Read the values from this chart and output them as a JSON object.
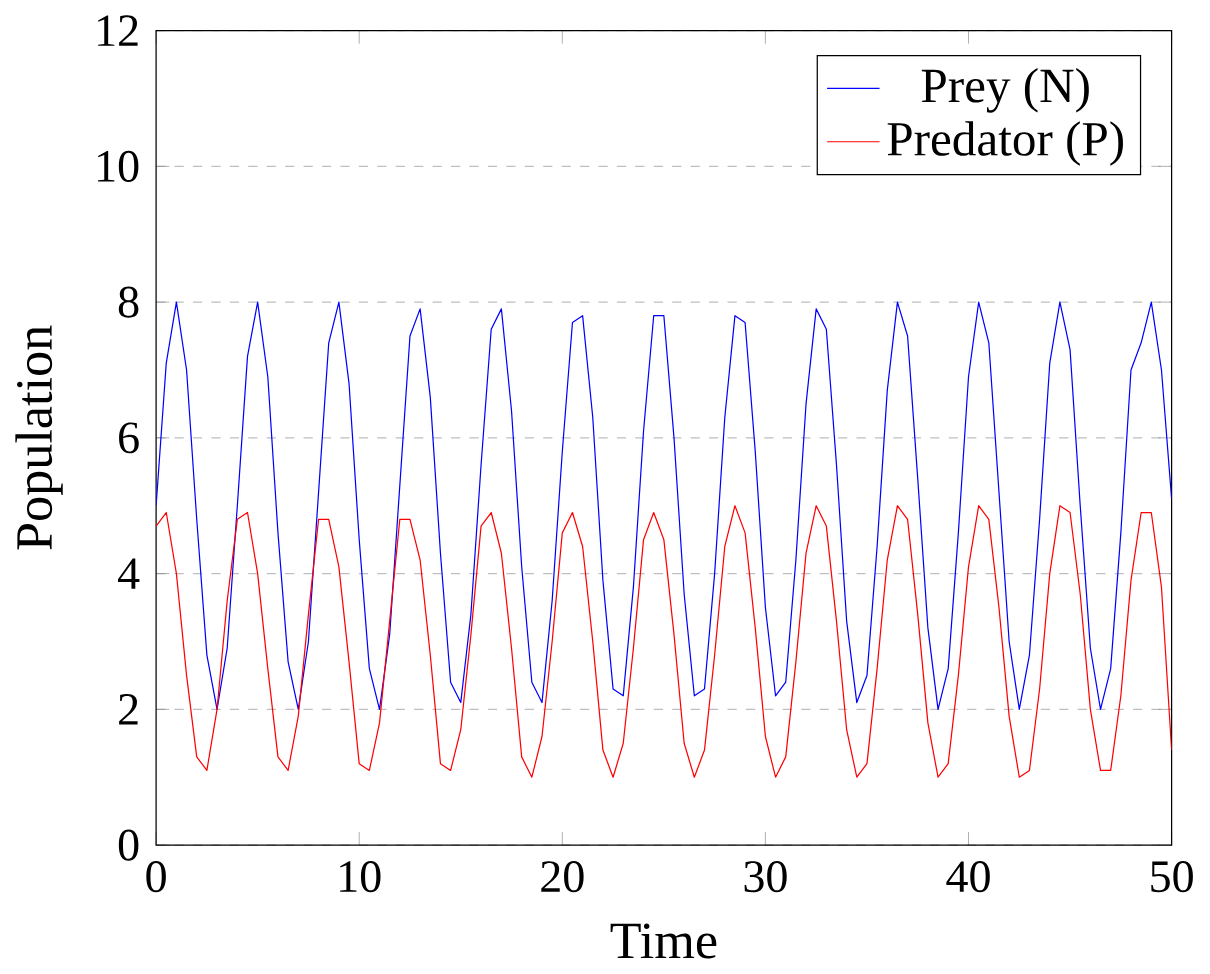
{
  "chart_data": {
    "type": "line",
    "xlabel": "Time",
    "ylabel": "Population",
    "x": [
      0,
      0.5,
      1,
      1.5,
      2,
      2.5,
      3,
      3.5,
      4,
      4.5,
      5,
      5.5,
      6,
      6.5,
      7,
      7.5,
      8,
      8.5,
      9,
      9.5,
      10,
      10.5,
      11,
      11.5,
      12,
      12.5,
      13,
      13.5,
      14,
      14.5,
      15,
      15.5,
      16,
      16.5,
      17,
      17.5,
      18,
      18.5,
      19,
      19.5,
      20,
      20.5,
      21,
      21.5,
      22,
      22.5,
      23,
      23.5,
      24,
      24.5,
      25,
      25.5,
      26,
      26.5,
      27,
      27.5,
      28,
      28.5,
      29,
      29.5,
      30,
      30.5,
      31,
      31.5,
      32,
      32.5,
      33,
      33.5,
      34,
      34.5,
      35,
      35.5,
      36,
      36.5,
      37,
      37.5,
      38,
      38.5,
      39,
      39.5,
      40,
      40.5,
      41,
      41.5,
      42,
      42.5,
      43,
      43.5,
      44,
      44.5,
      45,
      45.5,
      46,
      46.5,
      47,
      47.5,
      48,
      48.5,
      49,
      49.5,
      50
    ],
    "series": [
      {
        "name": "Prey (N)",
        "color": "#0000ff",
        "values": [
          5.0,
          7.1,
          8.0,
          7.0,
          4.8,
          2.8,
          2.0,
          2.9,
          5.0,
          7.2,
          8.0,
          6.9,
          4.6,
          2.7,
          2.0,
          3.0,
          5.2,
          7.4,
          8.0,
          6.8,
          4.5,
          2.6,
          2.0,
          3.1,
          5.3,
          7.5,
          7.9,
          6.6,
          4.3,
          2.4,
          2.1,
          3.4,
          5.6,
          7.6,
          7.9,
          6.4,
          4.1,
          2.4,
          2.1,
          3.6,
          5.8,
          7.7,
          7.8,
          6.3,
          3.9,
          2.3,
          2.2,
          3.8,
          6.1,
          7.8,
          7.8,
          6.0,
          3.7,
          2.2,
          2.3,
          4.0,
          6.3,
          7.8,
          7.7,
          5.8,
          3.5,
          2.2,
          2.4,
          4.2,
          6.5,
          7.9,
          7.6,
          5.6,
          3.3,
          2.1,
          2.5,
          4.4,
          6.7,
          8.0,
          7.5,
          5.4,
          3.2,
          2.0,
          2.6,
          4.6,
          6.9,
          8.0,
          7.4,
          5.2,
          3.0,
          2.0,
          2.8,
          4.8,
          7.1,
          8.0,
          7.3,
          5.0,
          2.9,
          2.0,
          2.6,
          4.6,
          7.0,
          7.4,
          8.0,
          7.0,
          5.1
        ]
      },
      {
        "name": "Predator (P)",
        "color": "#ff0000",
        "values": [
          4.7,
          4.9,
          4.0,
          2.5,
          1.3,
          1.1,
          2.0,
          3.6,
          4.8,
          4.9,
          4.0,
          2.6,
          1.3,
          1.1,
          1.9,
          3.4,
          4.8,
          4.8,
          4.1,
          2.7,
          1.2,
          1.1,
          1.8,
          3.3,
          4.8,
          4.8,
          4.2,
          2.8,
          1.2,
          1.1,
          1.7,
          3.1,
          4.7,
          4.9,
          4.3,
          2.9,
          1.3,
          1.0,
          1.6,
          3.0,
          4.6,
          4.9,
          4.4,
          3.0,
          1.4,
          1.0,
          1.5,
          2.9,
          4.5,
          4.9,
          4.5,
          3.1,
          1.5,
          1.0,
          1.4,
          2.8,
          4.4,
          5.0,
          4.6,
          3.2,
          1.6,
          1.0,
          1.3,
          2.7,
          4.3,
          5.0,
          4.7,
          3.3,
          1.7,
          1.0,
          1.2,
          2.6,
          4.2,
          5.0,
          4.8,
          3.4,
          1.8,
          1.0,
          1.2,
          2.5,
          4.1,
          5.0,
          4.8,
          3.5,
          1.9,
          1.0,
          1.1,
          2.3,
          4.0,
          5.0,
          4.9,
          3.7,
          2.0,
          1.1,
          1.1,
          2.2,
          3.9,
          4.9,
          4.9,
          3.8,
          1.4
        ]
      }
    ],
    "xlim": [
      0,
      50
    ],
    "ylim": [
      0,
      12
    ],
    "xticks": [
      0,
      10,
      20,
      30,
      40,
      50
    ],
    "yticks": [
      0,
      2,
      4,
      6,
      8,
      10,
      12
    ],
    "grid": "y",
    "legend": "top right",
    "marker": "none",
    "line_style": "solid"
  }
}
